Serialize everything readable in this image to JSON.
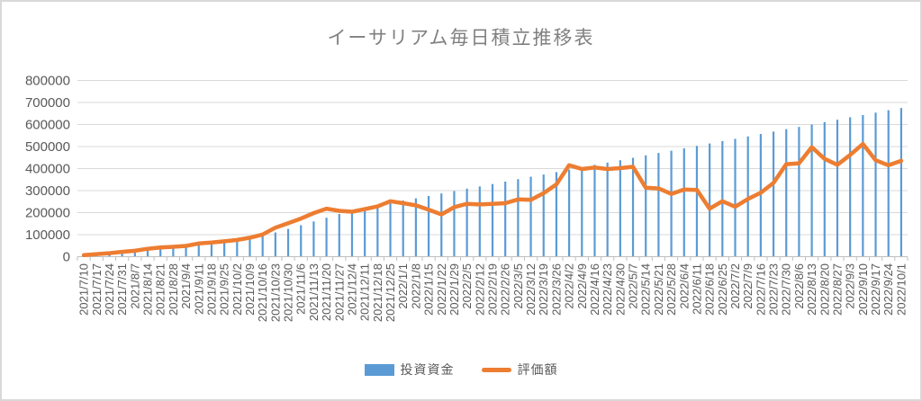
{
  "title": "イーサリアム毎日積立推移表",
  "legend": {
    "series1": "投資資金",
    "series2": "評価額"
  },
  "colors": {
    "invest_bar": "#5B9BD5",
    "eval_line": "#ED7D31",
    "gridline": "#D9D9D9",
    "axis": "#BFBFBF",
    "label_text": "#595959",
    "title_text": "#808080"
  },
  "y_axis": {
    "tick_labels": [
      "800000",
      "700000",
      "600000",
      "500000",
      "400000",
      "300000",
      "200000",
      "100000",
      "0"
    ],
    "min": 0,
    "max": 800000,
    "step": 100000
  },
  "chart_data": {
    "type": "combo",
    "title": "イーサリアム毎日積立推移表",
    "ylim": [
      0,
      800000
    ],
    "grid": true,
    "legend_position": "bottom",
    "categories": [
      "2021/7/10",
      "2021/7/17",
      "2021/7/24",
      "2021/7/31",
      "2021/8/7",
      "2021/8/14",
      "2021/8/21",
      "2021/8/28",
      "2021/9/4",
      "2021/9/11",
      "2021/9/18",
      "2021/9/25",
      "2021/10/2",
      "2021/10/9",
      "2021/10/16",
      "2021/10/23",
      "2021/10/30",
      "2021/11/6",
      "2021/11/13",
      "2021/11/20",
      "2021/11/27",
      "2021/12/4",
      "2021/12/11",
      "2021/12/18",
      "2021/12/25",
      "2022/1/1",
      "2022/1/8",
      "2022/1/15",
      "2022/1/22",
      "2022/1/29",
      "2022/2/5",
      "2022/2/12",
      "2022/2/19",
      "2022/2/26",
      "2022/3/5",
      "2022/3/12",
      "2022/3/19",
      "2022/3/26",
      "2022/4/2",
      "2022/4/9",
      "2022/4/16",
      "2022/4/23",
      "2022/4/30",
      "2022/5/7",
      "2022/5/14",
      "2022/5/21",
      "2022/5/28",
      "2022/6/4",
      "2022/6/11",
      "2022/6/18",
      "2022/6/25",
      "2022/7/2",
      "2022/7/9",
      "2022/7/16",
      "2022/7/23",
      "2022/7/30",
      "2022/8/6",
      "2022/8/13",
      "2022/8/20",
      "2022/8/27",
      "2022/9/3",
      "2022/9/10",
      "2022/9/17",
      "2022/9/24",
      "2022/10/1"
    ],
    "series": [
      {
        "name": "投資資金",
        "type": "bar",
        "values": [
          4000,
          9000,
          14000,
          20000,
          25000,
          31000,
          37000,
          43000,
          49000,
          56000,
          63000,
          70000,
          77000,
          85000,
          95000,
          110000,
          126000,
          143000,
          160000,
          177000,
          194000,
          210000,
          222000,
          233000,
          244000,
          255000,
          265000,
          276000,
          287000,
          298000,
          309000,
          319000,
          330000,
          341000,
          352000,
          363000,
          373000,
          384000,
          395000,
          406000,
          417000,
          427000,
          438000,
          449000,
          460000,
          471000,
          481000,
          492000,
          503000,
          514000,
          525000,
          535000,
          546000,
          557000,
          568000,
          579000,
          589000,
          600000,
          611000,
          622000,
          633000,
          643000,
          654000,
          665000,
          675000
        ]
      },
      {
        "name": "評価額",
        "type": "line",
        "values": [
          7000,
          12000,
          16000,
          22000,
          27000,
          36000,
          42000,
          45000,
          49000,
          60000,
          64000,
          70000,
          76000,
          86000,
          101000,
          132000,
          152000,
          173000,
          198000,
          218000,
          208000,
          204000,
          216000,
          228000,
          252000,
          243000,
          233000,
          213000,
          192000,
          225000,
          240000,
          237000,
          240000,
          243000,
          260000,
          258000,
          288000,
          328000,
          415000,
          398000,
          405000,
          398000,
          402000,
          408000,
          313000,
          310000,
          285000,
          305000,
          303000,
          218000,
          252000,
          227000,
          262000,
          290000,
          335000,
          420000,
          424000,
          497000,
          444000,
          417000,
          462000,
          512000,
          438000,
          415000,
          435000
        ]
      }
    ]
  }
}
